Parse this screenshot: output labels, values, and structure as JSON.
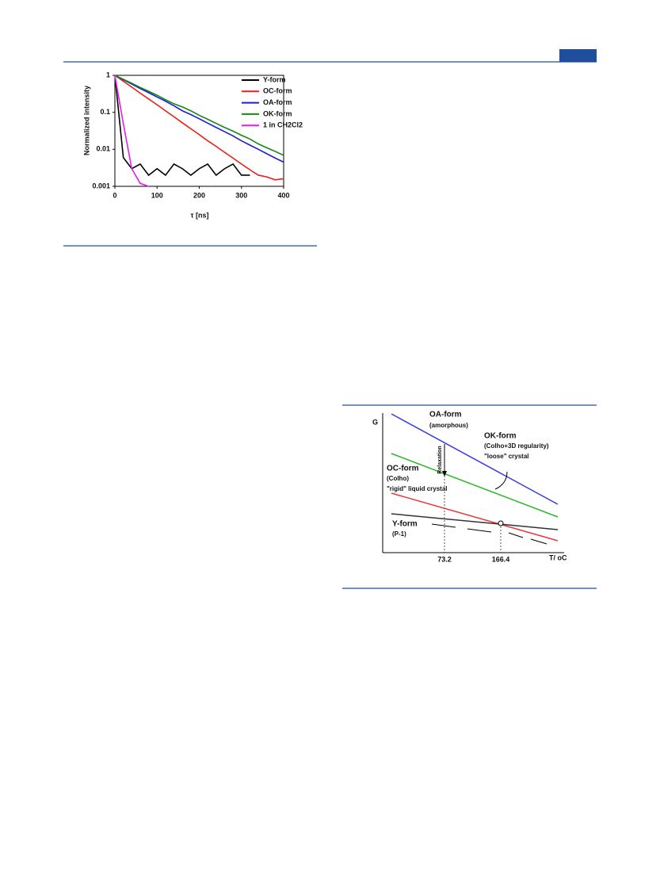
{
  "chart_data": {
    "type": "line",
    "log_y": true,
    "x_label": "τ [ns]",
    "y_label": "Normalized  intensity",
    "x": [
      0,
      20,
      40,
      60,
      80,
      100,
      120,
      140,
      160,
      180,
      200,
      220,
      240,
      260,
      280,
      300,
      320,
      340,
      360,
      380,
      400
    ],
    "xlim": [
      0,
      400
    ],
    "xticks": [
      0,
      100,
      200,
      300,
      400
    ],
    "ylim": [
      0.001,
      1
    ],
    "yticks": [
      1,
      0.1,
      0.01,
      0.001
    ],
    "legend": "top-right",
    "series": [
      {
        "name": "Y-form",
        "color": "#000000",
        "values": [
          1,
          0.006,
          0.003,
          0.004,
          0.002,
          0.003,
          0.002,
          0.004,
          0.003,
          0.002,
          0.003,
          0.004,
          0.002,
          0.003,
          0.004,
          0.002,
          0.002,
          null,
          null,
          null,
          null
        ]
      },
      {
        "name": "OC-form",
        "color": "#ee1c1c",
        "values": [
          1,
          0.69,
          0.48,
          0.33,
          0.23,
          0.16,
          0.11,
          0.076,
          0.052,
          0.036,
          0.025,
          0.017,
          0.012,
          0.0083,
          0.0058,
          0.004,
          0.0028,
          0.002,
          0.0018,
          0.0015,
          0.0016
        ]
      },
      {
        "name": "OA-form",
        "color": "#1c1ce0",
        "values": [
          1,
          0.76,
          0.58,
          0.44,
          0.34,
          0.26,
          0.2,
          0.15,
          0.11,
          0.087,
          0.067,
          0.051,
          0.039,
          0.03,
          0.023,
          0.017,
          0.013,
          0.01,
          0.0076,
          0.0058,
          0.0045
        ]
      },
      {
        "name": "OK-form",
        "color": "#138a13",
        "values": [
          1,
          0.78,
          0.61,
          0.47,
          0.37,
          0.29,
          0.22,
          0.17,
          0.14,
          0.11,
          0.083,
          0.065,
          0.05,
          0.039,
          0.031,
          0.024,
          0.019,
          0.014,
          0.011,
          0.0088,
          0.0069
        ]
      },
      {
        "name": "1 in CH2Cl2",
        "color": "#e81ce8",
        "values": [
          1,
          0.05,
          0.003,
          0.0012,
          0.001,
          null,
          null,
          null,
          null,
          null,
          null,
          null,
          null,
          null,
          null,
          null,
          null,
          null,
          null,
          null,
          null
        ]
      }
    ]
  },
  "diagram": {
    "axis_y": "G",
    "axis_x": "T/ oC",
    "labels": [
      "OA-form",
      "(amorphous)",
      "OK-form",
      "(Colho+3D regularity)",
      "\"loose\" crystal",
      "Relaxation",
      "OC-form",
      "(Colho)",
      "\"rigid\" liquid crystal",
      "Y-form",
      "(P-1)"
    ],
    "marks": [
      "73.2",
      "166.4"
    ]
  }
}
